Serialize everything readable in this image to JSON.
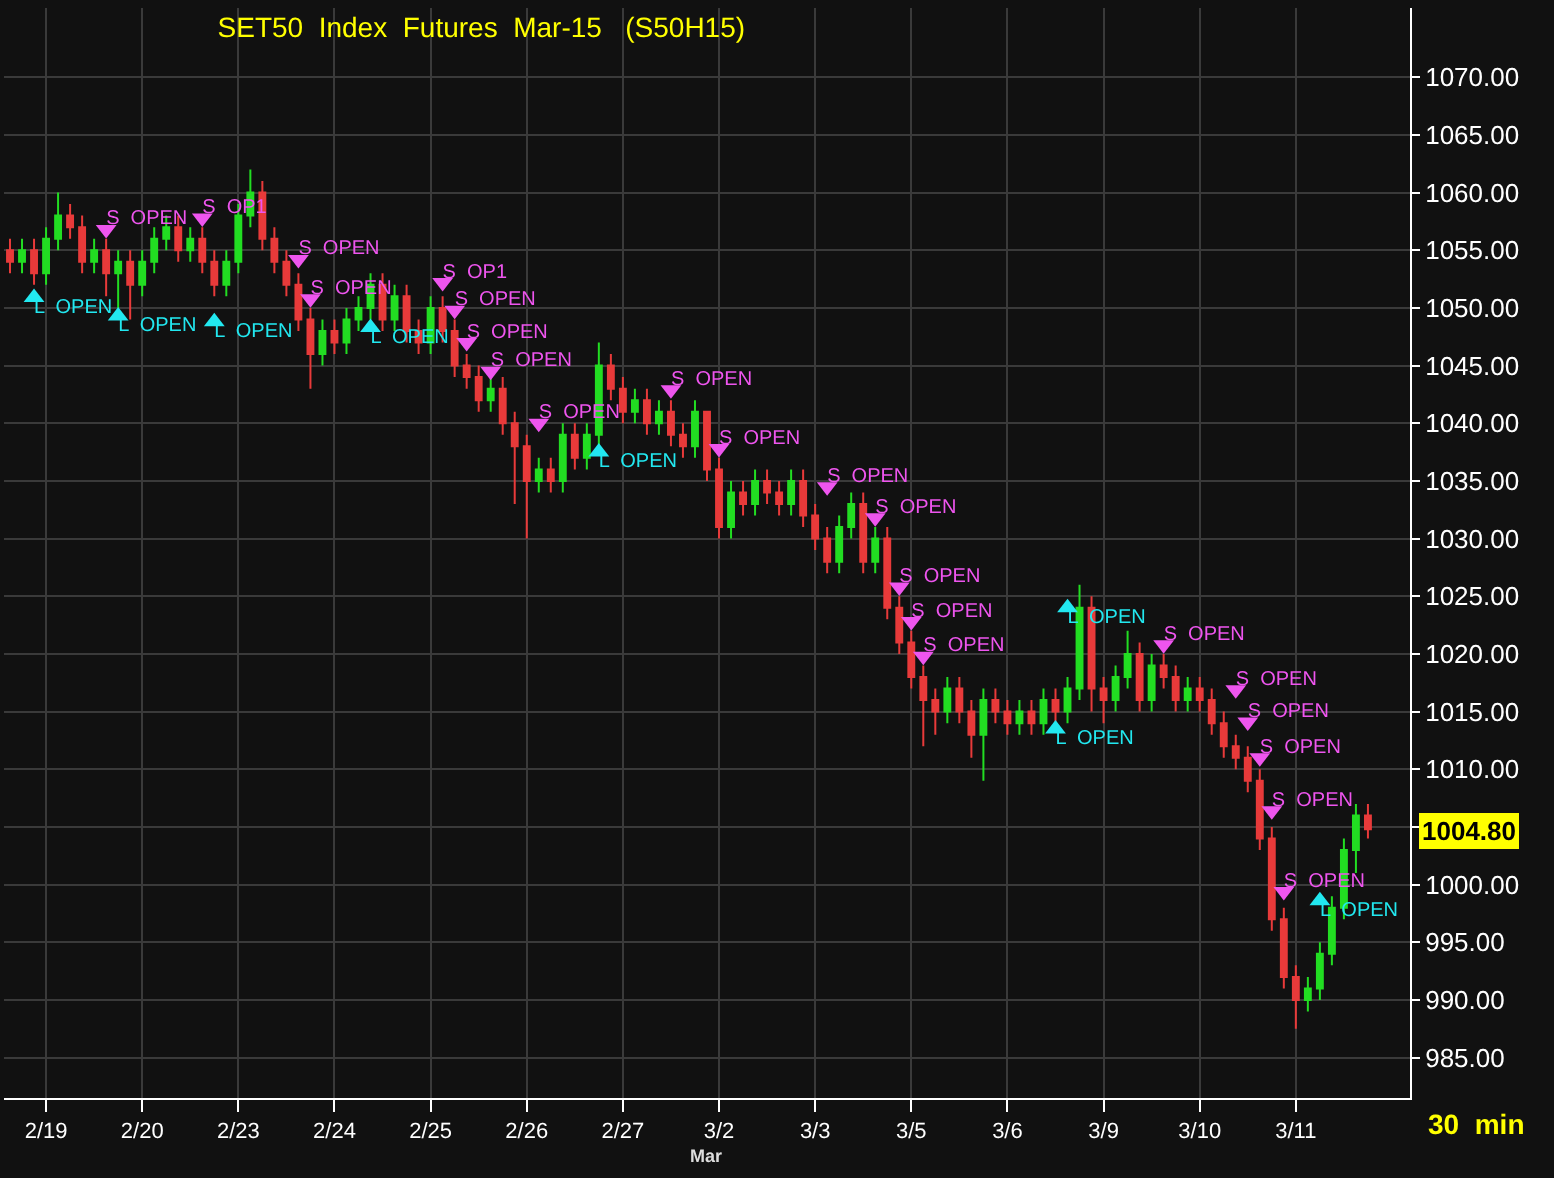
{
  "chart_data": {
    "type": "candlestick",
    "title": "SET50  Index  Futures  Mar-15   (S50H15)",
    "categories": [
      null,
      null,
      null,
      "2/19",
      null,
      null,
      null,
      null,
      null,
      null,
      null,
      "2/20",
      null,
      null,
      null,
      null,
      null,
      null,
      null,
      "2/23",
      null,
      null,
      null,
      null,
      null,
      null,
      null,
      "2/24",
      null,
      null,
      null,
      null,
      null,
      null,
      null,
      "2/25",
      null,
      null,
      null,
      null,
      null,
      null,
      null,
      "2/26",
      null,
      null,
      null,
      null,
      null,
      null,
      null,
      "2/27",
      null,
      null,
      null,
      null,
      null,
      null,
      null,
      "3/2",
      null,
      null,
      null,
      null,
      null,
      null,
      null,
      "3/3",
      null,
      null,
      null,
      null,
      null,
      null,
      null,
      "3/5",
      null,
      null,
      null,
      null,
      null,
      null,
      null,
      "3/6",
      null,
      null,
      null,
      null,
      null,
      null,
      null,
      "3/9",
      null,
      null,
      null,
      null,
      null,
      null,
      null,
      "3/10",
      null,
      null,
      null,
      null,
      null,
      null,
      null,
      "3/11",
      null,
      null,
      null,
      null,
      null,
      null
    ],
    "ohlc": [
      [
        1055,
        1056,
        1053,
        1054
      ],
      [
        1054,
        1056,
        1053,
        1055
      ],
      [
        1055,
        1056,
        1052,
        1053
      ],
      [
        1053,
        1057,
        1052,
        1056
      ],
      [
        1056,
        1060,
        1055,
        1058
      ],
      [
        1058,
        1059,
        1056,
        1057
      ],
      [
        1057,
        1058,
        1053,
        1054
      ],
      [
        1054,
        1056,
        1053,
        1055
      ],
      [
        1055,
        1056,
        1051,
        1053
      ],
      [
        1053,
        1055,
        1050,
        1054
      ],
      [
        1054,
        1055,
        1049,
        1052
      ],
      [
        1052,
        1055,
        1051,
        1054
      ],
      [
        1054,
        1057,
        1053,
        1056
      ],
      [
        1056,
        1058,
        1055,
        1057
      ],
      [
        1057,
        1058,
        1054,
        1055
      ],
      [
        1055,
        1057,
        1054,
        1056
      ],
      [
        1056,
        1057,
        1053,
        1054
      ],
      [
        1054,
        1055,
        1051,
        1052
      ],
      [
        1052,
        1055,
        1051,
        1054
      ],
      [
        1054,
        1059,
        1053,
        1058
      ],
      [
        1058,
        1062,
        1057,
        1060
      ],
      [
        1060,
        1061,
        1055,
        1056
      ],
      [
        1056,
        1057,
        1053,
        1054
      ],
      [
        1054,
        1055,
        1051,
        1052
      ],
      [
        1052,
        1053,
        1048,
        1049
      ],
      [
        1049,
        1050,
        1043,
        1046
      ],
      [
        1046,
        1049,
        1045,
        1048
      ],
      [
        1048,
        1049,
        1046,
        1047
      ],
      [
        1047,
        1050,
        1046,
        1049
      ],
      [
        1049,
        1051,
        1048,
        1050
      ],
      [
        1050,
        1053,
        1049,
        1052
      ],
      [
        1052,
        1053,
        1048,
        1049
      ],
      [
        1049,
        1052,
        1048,
        1051
      ],
      [
        1051,
        1052,
        1047,
        1048
      ],
      [
        1048,
        1049,
        1046,
        1047
      ],
      [
        1047,
        1051,
        1046,
        1050
      ],
      [
        1050,
        1051,
        1047,
        1048
      ],
      [
        1048,
        1049,
        1044,
        1045
      ],
      [
        1045,
        1046,
        1043,
        1044
      ],
      [
        1044,
        1045,
        1041,
        1042
      ],
      [
        1042,
        1044,
        1041,
        1043
      ],
      [
        1043,
        1044,
        1039,
        1040
      ],
      [
        1040,
        1041,
        1033,
        1038
      ],
      [
        1038,
        1039,
        1030,
        1035
      ],
      [
        1035,
        1037,
        1034,
        1036
      ],
      [
        1036,
        1037,
        1034,
        1035
      ],
      [
        1035,
        1040,
        1034,
        1039
      ],
      [
        1039,
        1040,
        1036,
        1037
      ],
      [
        1037,
        1040,
        1036,
        1039
      ],
      [
        1039,
        1047,
        1038,
        1045
      ],
      [
        1045,
        1046,
        1042,
        1043
      ],
      [
        1043,
        1044,
        1040,
        1041
      ],
      [
        1041,
        1043,
        1040,
        1042
      ],
      [
        1042,
        1043,
        1039,
        1040
      ],
      [
        1040,
        1042,
        1039,
        1041
      ],
      [
        1041,
        1042,
        1038,
        1039
      ],
      [
        1039,
        1040,
        1037,
        1038
      ],
      [
        1038,
        1042,
        1037,
        1041
      ],
      [
        1041,
        1041,
        1035,
        1036
      ],
      [
        1036,
        1037,
        1030,
        1031
      ],
      [
        1031,
        1035,
        1030,
        1034
      ],
      [
        1034,
        1035,
        1032,
        1033
      ],
      [
        1033,
        1036,
        1032,
        1035
      ],
      [
        1035,
        1036,
        1033,
        1034
      ],
      [
        1034,
        1035,
        1032,
        1033
      ],
      [
        1033,
        1036,
        1032,
        1035
      ],
      [
        1035,
        1036,
        1031,
        1032
      ],
      [
        1032,
        1033,
        1029,
        1030
      ],
      [
        1030,
        1031,
        1027,
        1028
      ],
      [
        1028,
        1032,
        1027,
        1031
      ],
      [
        1031,
        1034,
        1030,
        1033
      ],
      [
        1033,
        1034,
        1027,
        1028
      ],
      [
        1028,
        1031,
        1027,
        1030
      ],
      [
        1030,
        1031,
        1023,
        1024
      ],
      [
        1024,
        1025,
        1020,
        1021
      ],
      [
        1021,
        1022,
        1017,
        1018
      ],
      [
        1018,
        1019,
        1012,
        1016
      ],
      [
        1016,
        1017,
        1013,
        1015
      ],
      [
        1015,
        1018,
        1014,
        1017
      ],
      [
        1017,
        1018,
        1014,
        1015
      ],
      [
        1015,
        1016,
        1011,
        1013
      ],
      [
        1013,
        1017,
        1009,
        1016
      ],
      [
        1016,
        1017,
        1014,
        1015
      ],
      [
        1015,
        1016,
        1013,
        1014
      ],
      [
        1014,
        1016,
        1013,
        1015
      ],
      [
        1015,
        1016,
        1013,
        1014
      ],
      [
        1014,
        1017,
        1013,
        1016
      ],
      [
        1016,
        1017,
        1014,
        1015
      ],
      [
        1015,
        1018,
        1014,
        1017
      ],
      [
        1017,
        1026,
        1016,
        1024
      ],
      [
        1024,
        1025,
        1015,
        1017
      ],
      [
        1017,
        1018,
        1014,
        1016
      ],
      [
        1016,
        1019,
        1015,
        1018
      ],
      [
        1018,
        1022,
        1017,
        1020
      ],
      [
        1020,
        1021,
        1015,
        1016
      ],
      [
        1016,
        1020,
        1015,
        1019
      ],
      [
        1019,
        1020,
        1017,
        1018
      ],
      [
        1018,
        1019,
        1015,
        1016
      ],
      [
        1016,
        1018,
        1015,
        1017
      ],
      [
        1017,
        1018,
        1015,
        1016
      ],
      [
        1016,
        1017,
        1013,
        1014
      ],
      [
        1014,
        1015,
        1011,
        1012
      ],
      [
        1012,
        1013,
        1010,
        1011
      ],
      [
        1011,
        1012,
        1008,
        1009
      ],
      [
        1009,
        1010,
        1003,
        1004
      ],
      [
        1004,
        1005,
        996,
        997
      ],
      [
        997,
        998,
        991,
        992
      ],
      [
        992,
        993,
        987.5,
        990
      ],
      [
        990,
        992,
        989,
        991
      ],
      [
        991,
        995,
        990,
        994
      ],
      [
        994,
        999,
        993,
        998
      ],
      [
        998,
        1004,
        997,
        1003
      ],
      [
        1003,
        1007,
        1001,
        1006
      ],
      [
        1006,
        1007,
        1004,
        1004.8
      ]
    ],
    "colors": [
      "#e83a3a",
      "#22dd22",
      "#e83a3a",
      "#22dd22",
      "#22dd22",
      "#e83a3a",
      "#e83a3a",
      "#22dd22",
      "#e83a3a",
      "#22dd22",
      "#e83a3a",
      "#22dd22",
      "#22dd22",
      "#22dd22",
      "#e83a3a",
      "#22dd22",
      "#e83a3a",
      "#e83a3a",
      "#22dd22",
      "#22dd22",
      "#22dd22",
      "#e83a3a",
      "#e83a3a",
      "#e83a3a",
      "#e83a3a",
      "#e83a3a",
      "#22dd22",
      "#e83a3a",
      "#22dd22",
      "#22dd22",
      "#22dd22",
      "#e83a3a",
      "#22dd22",
      "#e83a3a",
      "#e83a3a",
      "#22dd22",
      "#e83a3a",
      "#e83a3a",
      "#e83a3a",
      "#e83a3a",
      "#22dd22",
      "#e83a3a",
      "#e83a3a",
      "#e83a3a",
      "#22dd22",
      "#e83a3a",
      "#22dd22",
      "#e83a3a",
      "#22dd22",
      "#22dd22",
      "#e83a3a",
      "#e83a3a",
      "#22dd22",
      "#e83a3a",
      "#22dd22",
      "#e83a3a",
      "#e83a3a",
      "#22dd22",
      "#e83a3a",
      "#e83a3a",
      "#22dd22",
      "#e83a3a",
      "#22dd22",
      "#e83a3a",
      "#e83a3a",
      "#22dd22",
      "#e83a3a",
      "#e83a3a",
      "#e83a3a",
      "#22dd22",
      "#22dd22",
      "#e83a3a",
      "#22dd22",
      "#e83a3a",
      "#e83a3a",
      "#e83a3a",
      "#e83a3a",
      "#e83a3a",
      "#22dd22",
      "#e83a3a",
      "#e83a3a",
      "#22dd22",
      "#e83a3a",
      "#e83a3a",
      "#22dd22",
      "#e83a3a",
      "#22dd22",
      "#e83a3a",
      "#22dd22",
      "#22dd22",
      "#e83a3a",
      "#e83a3a",
      "#22dd22",
      "#22dd22",
      "#e83a3a",
      "#22dd22",
      "#e83a3a",
      "#e83a3a",
      "#22dd22",
      "#e83a3a",
      "#e83a3a",
      "#e83a3a",
      "#e83a3a",
      "#e83a3a",
      "#e83a3a",
      "#e83a3a",
      "#e83a3a",
      "#e83a3a",
      "#22dd22",
      "#22dd22",
      "#22dd22",
      "#22dd22",
      "#22dd22",
      "#e83a3a"
    ],
    "series": [
      {
        "type": "scatter",
        "marker": "triangle-down",
        "color": "#ee55ee",
        "values": [
          null,
          null,
          null,
          null,
          null,
          null,
          null,
          null,
          1056.8,
          null,
          null,
          null,
          null,
          null,
          null,
          null,
          1057.8,
          null,
          null,
          null,
          null,
          null,
          null,
          null,
          1054.2,
          1050.8,
          null,
          null,
          null,
          null,
          null,
          null,
          null,
          null,
          null,
          null,
          1052.2,
          1049.8,
          1047.0,
          null,
          1044.5,
          null,
          null,
          null,
          1040.0,
          null,
          null,
          null,
          null,
          null,
          null,
          null,
          null,
          null,
          null,
          1042.9,
          null,
          null,
          null,
          1037.8,
          null,
          null,
          null,
          null,
          null,
          null,
          null,
          null,
          1034.5,
          null,
          null,
          null,
          1031.8,
          null,
          1025.8,
          1022.8,
          1019.8,
          null,
          null,
          null,
          null,
          null,
          null,
          null,
          null,
          null,
          null,
          null,
          null,
          null,
          null,
          null,
          null,
          null,
          null,
          null,
          1020.8,
          null,
          null,
          null,
          null,
          null,
          1016.9,
          1014.1,
          1011.0,
          1006.4,
          999.4,
          null,
          null,
          null,
          null,
          null,
          null,
          null
        ],
        "value_labels": [
          null,
          null,
          null,
          null,
          null,
          null,
          null,
          null,
          "S  OPEN",
          null,
          null,
          null,
          null,
          null,
          null,
          null,
          "S  OP1",
          null,
          null,
          null,
          null,
          null,
          null,
          null,
          "S  OPEN",
          "S  OPEN",
          null,
          null,
          null,
          null,
          null,
          null,
          null,
          null,
          null,
          null,
          "S  OP1",
          "S  OPEN",
          "S  OPEN",
          null,
          "S  OPEN",
          null,
          null,
          null,
          "S  OPEN",
          null,
          null,
          null,
          null,
          null,
          null,
          null,
          null,
          null,
          null,
          "S  OPEN",
          null,
          null,
          null,
          "S  OPEN",
          null,
          null,
          null,
          null,
          null,
          null,
          null,
          null,
          "S  OPEN",
          null,
          null,
          null,
          "S  OPEN",
          null,
          "S  OPEN",
          "S  OPEN",
          "S  OPEN",
          null,
          null,
          null,
          null,
          null,
          null,
          null,
          null,
          null,
          null,
          null,
          null,
          null,
          null,
          null,
          null,
          null,
          null,
          null,
          "S  OPEN",
          null,
          null,
          null,
          null,
          null,
          "S  OPEN",
          "S  OPEN",
          "S  OPEN",
          "S  OPEN",
          "S  OPEN",
          null,
          null,
          null,
          null,
          null,
          null,
          null
        ]
      },
      {
        "type": "scatter",
        "marker": "triangle",
        "color": "#22e8f0",
        "values": [
          null,
          null,
          1050.9,
          null,
          null,
          null,
          null,
          null,
          null,
          1049.3,
          null,
          null,
          null,
          null,
          null,
          null,
          null,
          1048.8,
          null,
          null,
          null,
          null,
          null,
          null,
          null,
          null,
          null,
          null,
          null,
          null,
          1048.3,
          null,
          null,
          null,
          null,
          null,
          null,
          null,
          null,
          null,
          null,
          null,
          null,
          null,
          null,
          null,
          null,
          null,
          null,
          1037.5,
          null,
          null,
          null,
          null,
          null,
          null,
          null,
          null,
          null,
          null,
          null,
          null,
          null,
          null,
          null,
          null,
          null,
          null,
          null,
          null,
          null,
          null,
          null,
          null,
          null,
          null,
          null,
          null,
          null,
          null,
          null,
          null,
          null,
          null,
          null,
          null,
          null,
          1013.5,
          1024.0,
          null,
          null,
          null,
          null,
          null,
          null,
          null,
          null,
          null,
          null,
          null,
          null,
          null,
          null,
          null,
          null,
          null,
          null,
          null,
          null,
          998.6,
          null,
          null,
          null,
          null
        ],
        "value_labels": [
          null,
          null,
          "L  OPEN",
          null,
          null,
          null,
          null,
          null,
          null,
          "L  OPEN",
          null,
          null,
          null,
          null,
          null,
          null,
          null,
          "L  OPEN",
          null,
          null,
          null,
          null,
          null,
          null,
          null,
          null,
          null,
          null,
          null,
          null,
          "L  OPEN",
          null,
          null,
          null,
          null,
          null,
          null,
          null,
          null,
          null,
          null,
          null,
          null,
          null,
          null,
          null,
          null,
          null,
          null,
          "L  OPEN",
          null,
          null,
          null,
          null,
          null,
          null,
          null,
          null,
          null,
          null,
          null,
          null,
          null,
          null,
          null,
          null,
          null,
          null,
          null,
          null,
          null,
          null,
          null,
          null,
          null,
          null,
          null,
          null,
          null,
          null,
          null,
          null,
          null,
          null,
          null,
          null,
          null,
          "L  OPEN",
          "L  OPEN",
          null,
          null,
          null,
          null,
          null,
          null,
          null,
          null,
          null,
          null,
          null,
          null,
          null,
          null,
          null,
          null,
          null,
          null,
          null,
          null,
          "L  OPEN",
          null,
          null,
          null,
          null
        ]
      }
    ],
    "ylim": [
      981.5,
      1076
    ],
    "yticks": [
      {
        "value": 985,
        "label": "985.00"
      },
      {
        "value": 990,
        "label": "990.00"
      },
      {
        "value": 995,
        "label": "995.00"
      },
      {
        "value": 1000,
        "label": "1000.00"
      },
      {
        "value": 1005,
        "label": null
      },
      {
        "value": 1010,
        "label": "1010.00"
      },
      {
        "value": 1015,
        "label": "1015.00"
      },
      {
        "value": 1020,
        "label": "1020.00"
      },
      {
        "value": 1025,
        "label": "1025.00"
      },
      {
        "value": 1030,
        "label": "1030.00"
      },
      {
        "value": 1035,
        "label": "1035.00"
      },
      {
        "value": 1040,
        "label": "1040.00"
      },
      {
        "value": 1045,
        "label": "1045.00"
      },
      {
        "value": 1050,
        "label": "1050.00"
      },
      {
        "value": 1055,
        "label": "1055.00"
      },
      {
        "value": 1060,
        "label": "1060.00"
      },
      {
        "value": 1065,
        "label": "1065.00"
      },
      {
        "value": 1070,
        "label": "1070.00"
      }
    ],
    "annotations": [
      "Mar",
      "30  min",
      "1004.80"
    ],
    "grid": true
  }
}
